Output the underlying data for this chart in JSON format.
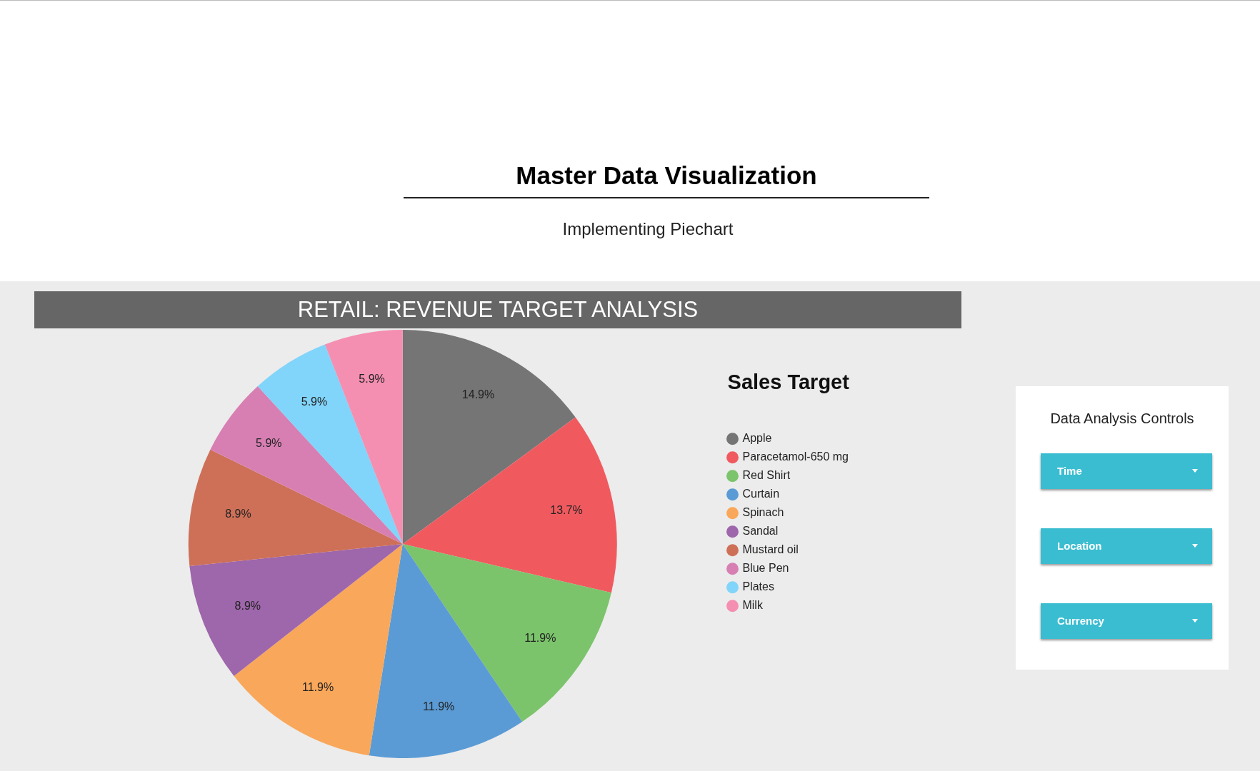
{
  "chart_data": [
    {
      "type": "other",
      "title": "Master Data Visualization",
      "subtitle": "Implementing Piechart"
    },
    {
      "type": "pie",
      "title": "RETAIL: REVENUE TARGET ANALYSIS",
      "legend_title": "Sales Target",
      "legend": "right",
      "categories": [
        "Apple",
        "Paracetamol-650 mg",
        "Red Shirt",
        "Curtain",
        "Spinach",
        "Sandal",
        "Mustard oil",
        "Blue Pen",
        "Plates",
        "Milk"
      ],
      "values": [
        14.9,
        13.7,
        11.9,
        11.9,
        11.9,
        8.9,
        8.9,
        5.9,
        5.9,
        5.9
      ],
      "value_labels": [
        "14.9%",
        "13.7%",
        "11.9%",
        "11.9%",
        "11.9%",
        "8.9%",
        "8.9%",
        "5.9%",
        "5.9%",
        "5.9%"
      ],
      "colors": [
        "#757575",
        "#f05a5f",
        "#7bc46b",
        "#5b9bd5",
        "#f9a75a",
        "#9e66ab",
        "#ce7058",
        "#d77fb3",
        "#81d4fa",
        "#f48fb1"
      ]
    },
    {
      "type": "other",
      "title": "Data Analysis Controls",
      "annotations": [
        "Time",
        "Location",
        "Currency"
      ]
    }
  ]
}
